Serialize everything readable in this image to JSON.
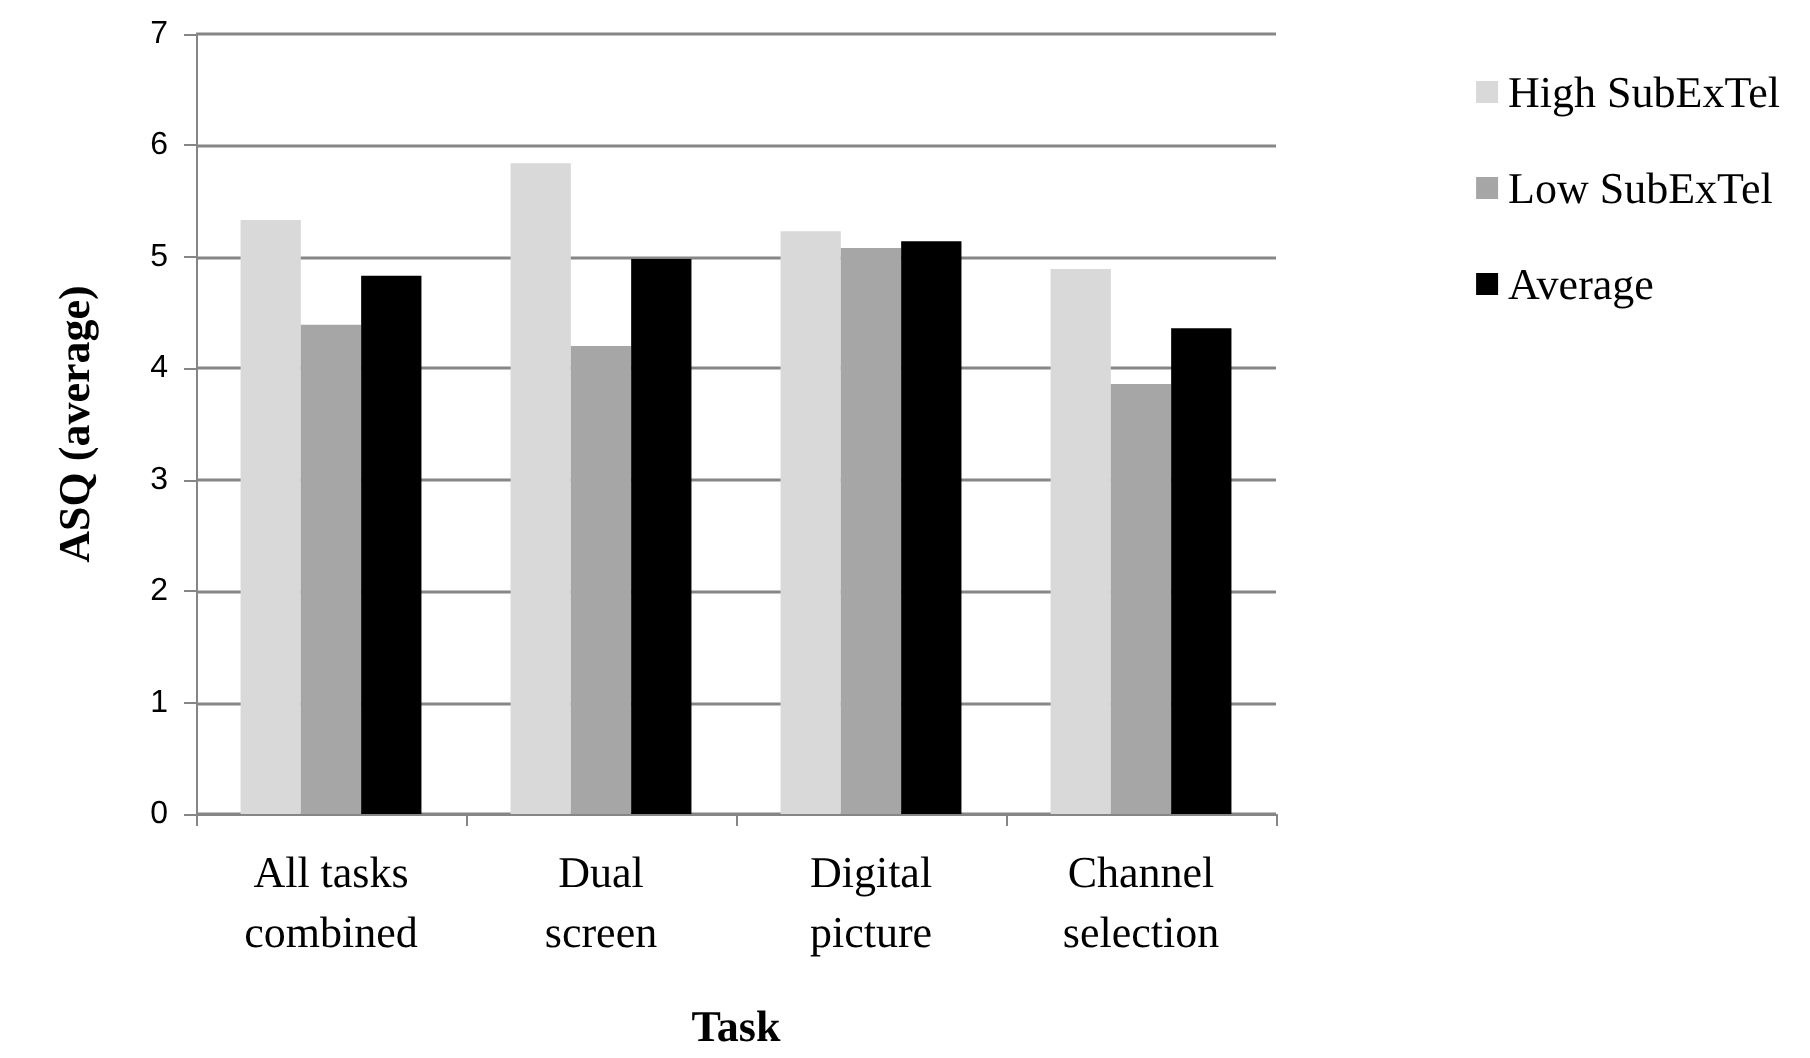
{
  "chart_data": {
    "type": "bar",
    "xlabel": "Task",
    "ylabel": "ASQ (average)",
    "categories": [
      "All tasks\ncombined",
      "Dual\nscreen",
      "Digital\npicture",
      "Channel\nselection"
    ],
    "series": [
      {
        "name": "High SubExTel",
        "color": "#d9d9d9",
        "values": [
          5.33,
          5.84,
          5.23,
          4.89
        ]
      },
      {
        "name": "Low SubExTel",
        "color": "#a6a6a6",
        "values": [
          4.39,
          4.2,
          5.08,
          3.86
        ]
      },
      {
        "name": "Average",
        "color": "#000000",
        "values": [
          4.83,
          4.98,
          5.14,
          4.36
        ]
      }
    ],
    "ylim": [
      0,
      7
    ],
    "yticks": [
      0,
      1,
      2,
      3,
      4,
      5,
      6,
      7
    ],
    "grid": "y",
    "legend": "right"
  }
}
